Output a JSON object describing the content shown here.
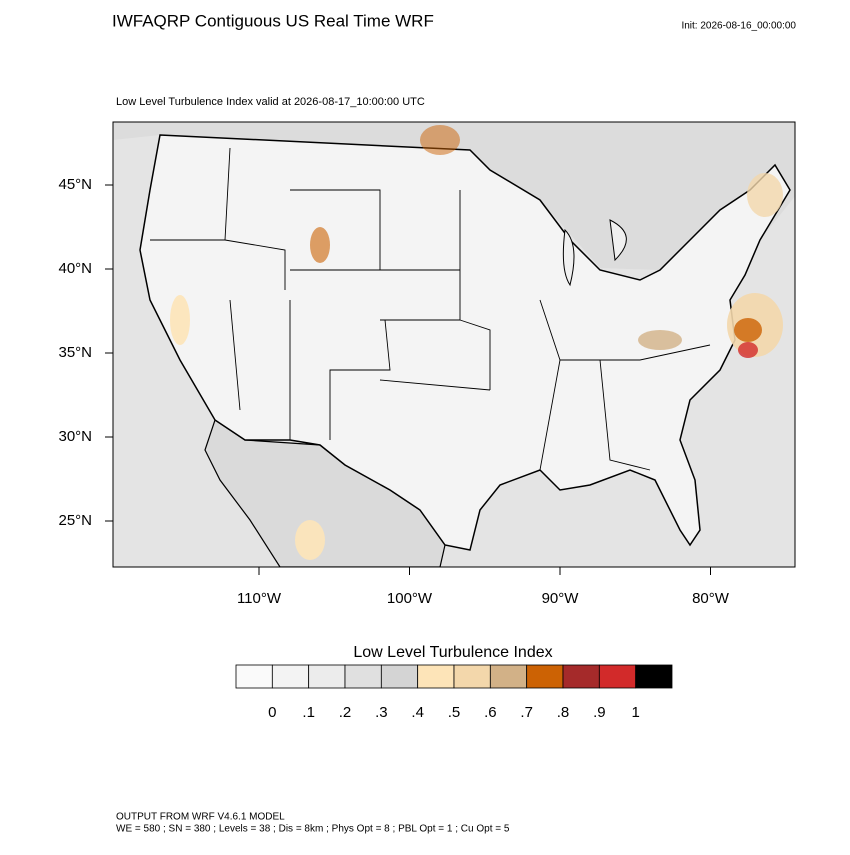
{
  "header": {
    "title": "IWFAQRP Contiguous US Real Time WRF",
    "init": "Init: 2026-08-16_00:00:00"
  },
  "map": {
    "subtitle": "Low Level Turbulence Index valid at 2026-08-17_10:00:00 UTC",
    "lat_labels": [
      "45°N",
      "40°N",
      "35°N",
      "30°N",
      "25°N"
    ],
    "lon_labels": [
      "110°W",
      "100°W",
      "90°W",
      "80°W"
    ]
  },
  "colorbar": {
    "title": "Low Level Turbulence Index",
    "labels": [
      "0",
      ".1",
      ".2",
      ".3",
      ".4",
      ".5",
      ".6",
      ".7",
      ".8",
      ".9",
      "1"
    ],
    "colors": [
      "#fafafa",
      "#f3f3f3",
      "#ececec",
      "#e0e0e0",
      "#d4d4d4",
      "#fde4b8",
      "#f3d7ab",
      "#d2b187",
      "#cc6204",
      "#a52a2a",
      "#d22a2a",
      "#000000"
    ]
  },
  "footer": {
    "lines": [
      "OUTPUT FROM WRF V4.6.1 MODEL",
      "WE = 580 ; SN = 380 ; Levels = 38 ; Dis = 8km ; Phys Opt = 8 ; PBL Opt = 1 ; Cu Opt = 5"
    ]
  }
}
